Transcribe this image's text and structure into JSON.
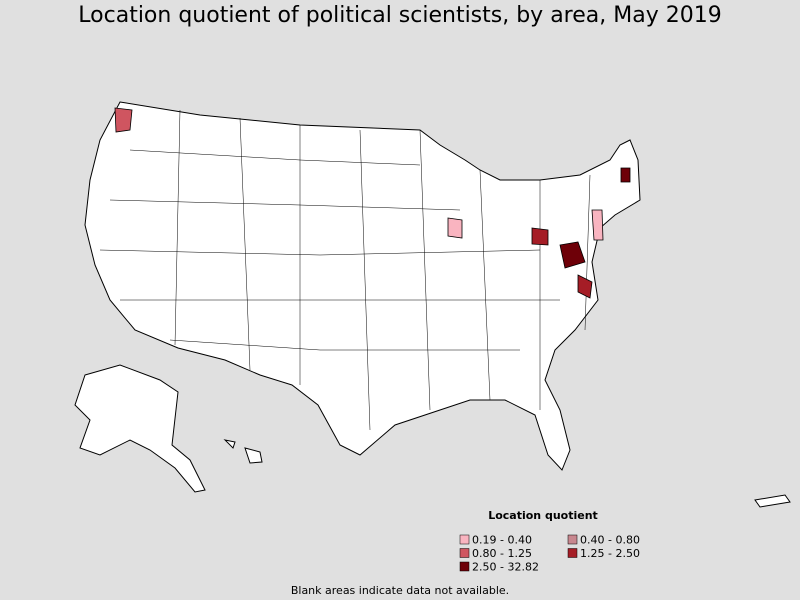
{
  "title": "Location quotient of political scientists, by area, May 2019",
  "legend": {
    "title": "Location quotient",
    "items": [
      {
        "label": "0.19 - 0.40",
        "color": "#f9b4c0"
      },
      {
        "label": "0.40 - 0.80",
        "color": "#c8878f"
      },
      {
        "label": "0.80 - 1.25",
        "color": "#cf5560"
      },
      {
        "label": "1.25 - 2.50",
        "color": "#a51d26"
      },
      {
        "label": "2.50 - 32.82",
        "color": "#6e0008"
      }
    ]
  },
  "footnote": "Blank areas indicate data not available."
}
